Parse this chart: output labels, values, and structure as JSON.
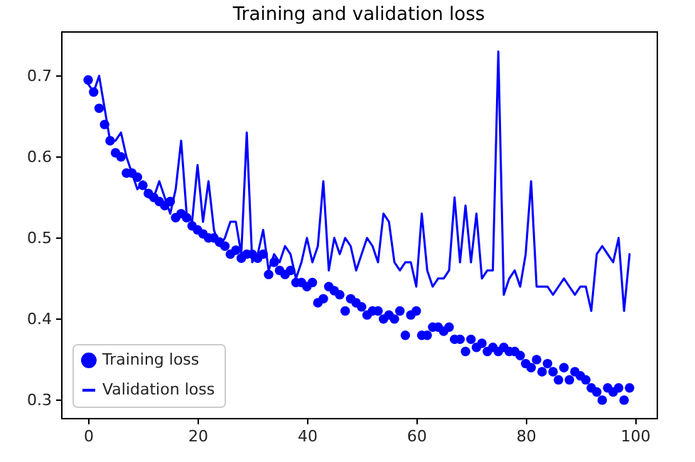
{
  "chart_data": {
    "type": "line",
    "title": "Training and validation loss",
    "x": [
      0,
      1,
      2,
      3,
      4,
      5,
      6,
      7,
      8,
      9,
      10,
      11,
      12,
      13,
      14,
      15,
      16,
      17,
      18,
      19,
      20,
      21,
      22,
      23,
      24,
      25,
      26,
      27,
      28,
      29,
      30,
      31,
      32,
      33,
      34,
      35,
      36,
      37,
      38,
      39,
      40,
      41,
      42,
      43,
      44,
      45,
      46,
      47,
      48,
      49,
      50,
      51,
      52,
      53,
      54,
      55,
      56,
      57,
      58,
      59,
      60,
      61,
      62,
      63,
      64,
      65,
      66,
      67,
      68,
      69,
      70,
      71,
      72,
      73,
      74,
      75,
      76,
      77,
      78,
      79,
      80,
      81,
      82,
      83,
      84,
      85,
      86,
      87,
      88,
      89,
      90,
      91,
      92,
      93,
      94,
      95,
      96,
      97,
      98,
      99
    ],
    "series": [
      {
        "name": "Training loss",
        "type": "scatter",
        "marker": "circle",
        "color": "#0000ff",
        "values": [
          0.695,
          0.68,
          0.66,
          0.64,
          0.62,
          0.605,
          0.6,
          0.58,
          0.58,
          0.575,
          0.565,
          0.555,
          0.55,
          0.545,
          0.54,
          0.545,
          0.525,
          0.53,
          0.525,
          0.515,
          0.51,
          0.505,
          0.5,
          0.5,
          0.495,
          0.49,
          0.48,
          0.485,
          0.475,
          0.48,
          0.48,
          0.475,
          0.48,
          0.455,
          0.47,
          0.46,
          0.455,
          0.46,
          0.445,
          0.445,
          0.44,
          0.445,
          0.42,
          0.425,
          0.44,
          0.435,
          0.43,
          0.41,
          0.425,
          0.42,
          0.415,
          0.405,
          0.41,
          0.41,
          0.4,
          0.405,
          0.4,
          0.41,
          0.38,
          0.405,
          0.41,
          0.38,
          0.38,
          0.39,
          0.39,
          0.385,
          0.39,
          0.375,
          0.375,
          0.36,
          0.375,
          0.365,
          0.37,
          0.36,
          0.365,
          0.36,
          0.365,
          0.36,
          0.36,
          0.355,
          0.345,
          0.34,
          0.35,
          0.335,
          0.345,
          0.335,
          0.325,
          0.34,
          0.325,
          0.335,
          0.33,
          0.325,
          0.315,
          0.31,
          0.3,
          0.315,
          0.31,
          0.315,
          0.3,
          0.315
        ]
      },
      {
        "name": "Validation loss",
        "color": "#0000ff",
        "values": [
          0.69,
          0.68,
          0.7,
          0.66,
          0.62,
          0.62,
          0.63,
          0.6,
          0.58,
          0.56,
          0.57,
          0.55,
          0.55,
          0.57,
          0.55,
          0.53,
          0.56,
          0.62,
          0.53,
          0.52,
          0.59,
          0.52,
          0.57,
          0.51,
          0.49,
          0.5,
          0.52,
          0.52,
          0.48,
          0.63,
          0.47,
          0.48,
          0.51,
          0.46,
          0.48,
          0.47,
          0.49,
          0.48,
          0.45,
          0.47,
          0.5,
          0.47,
          0.49,
          0.57,
          0.46,
          0.5,
          0.48,
          0.5,
          0.49,
          0.46,
          0.48,
          0.5,
          0.49,
          0.47,
          0.53,
          0.52,
          0.47,
          0.46,
          0.47,
          0.47,
          0.44,
          0.53,
          0.46,
          0.44,
          0.45,
          0.45,
          0.46,
          0.55,
          0.47,
          0.54,
          0.47,
          0.53,
          0.45,
          0.46,
          0.46,
          0.73,
          0.43,
          0.45,
          0.46,
          0.44,
          0.48,
          0.57,
          0.44,
          0.44,
          0.44,
          0.43,
          0.44,
          0.45,
          0.44,
          0.43,
          0.44,
          0.44,
          0.41,
          0.48,
          0.49,
          0.48,
          0.47,
          0.5,
          0.41,
          0.48
        ]
      }
    ],
    "xlim": [
      -4.95,
      103.95
    ],
    "xticks": [
      0,
      20,
      40,
      60,
      80,
      100
    ],
    "ylim": [
      0.278,
      0.755
    ],
    "yticks": [
      0.3,
      0.4,
      0.5,
      0.6,
      0.7
    ],
    "legend": "bottom left",
    "line_style": "solid",
    "grid": false
  }
}
